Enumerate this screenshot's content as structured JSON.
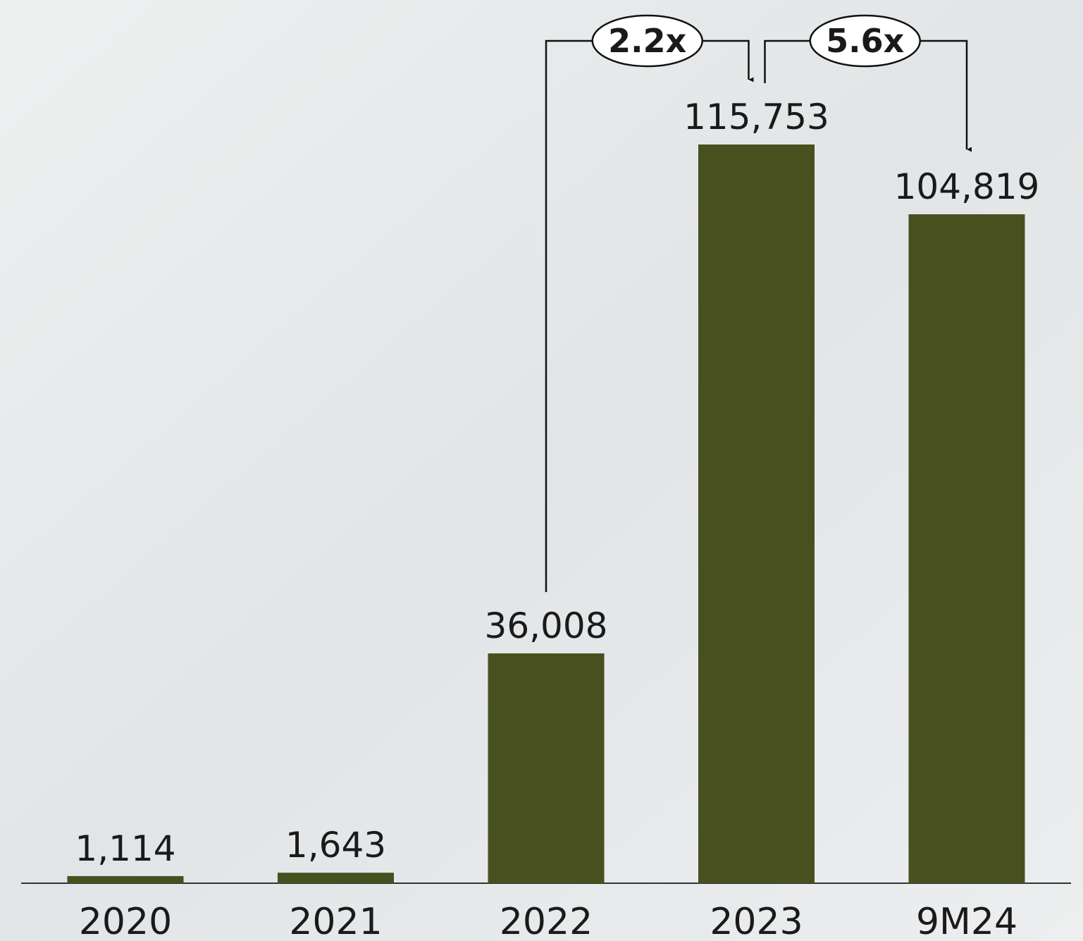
{
  "chart_data": {
    "type": "bar",
    "categories": [
      "2020",
      "2021",
      "2022",
      "2023",
      "9M24"
    ],
    "values": [
      1114,
      1643,
      36008,
      115753,
      104819
    ],
    "value_labels": [
      "1,114",
      "1,643",
      "36,008",
      "115,753",
      "104,819"
    ],
    "color": "#48501f",
    "annotations": [
      "2.2x",
      "5.6x"
    ]
  }
}
